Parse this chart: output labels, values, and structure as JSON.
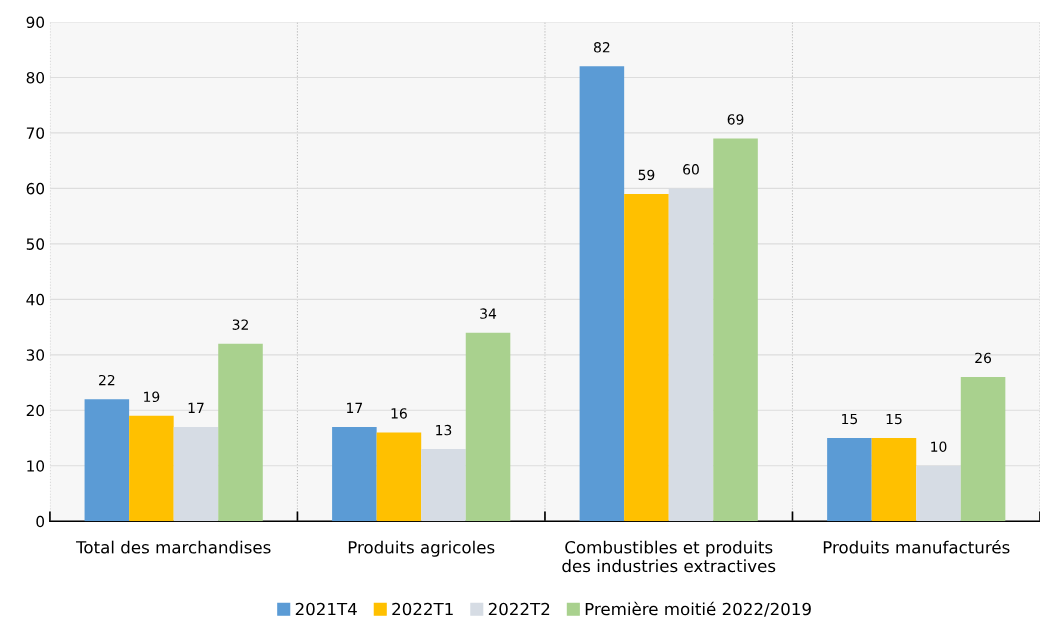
{
  "chart_data": {
    "type": "bar",
    "categories": [
      "Total des marchandises",
      "Produits agricoles",
      "Combustibles et produits\ndes industries extractives",
      "Produits manufacturés"
    ],
    "series": [
      {
        "name": "2021T4",
        "color": "#5b9bd5",
        "values": [
          22,
          17,
          82,
          15
        ]
      },
      {
        "name": "2022T1",
        "color": "#ffc000",
        "values": [
          19,
          16,
          59,
          15
        ]
      },
      {
        "name": "2022T2",
        "color": "#d6dce4",
        "values": [
          17,
          13,
          60,
          10
        ]
      },
      {
        "name": "Première moitié 2022/2019",
        "color": "#a9d18e",
        "values": [
          32,
          34,
          69,
          26
        ]
      }
    ],
    "ylim": [
      0,
      90
    ],
    "yticks": [
      0,
      10,
      20,
      30,
      40,
      50,
      60,
      70,
      80,
      90
    ],
    "grid": "y",
    "legend": "bottom",
    "data_labels": true
  }
}
